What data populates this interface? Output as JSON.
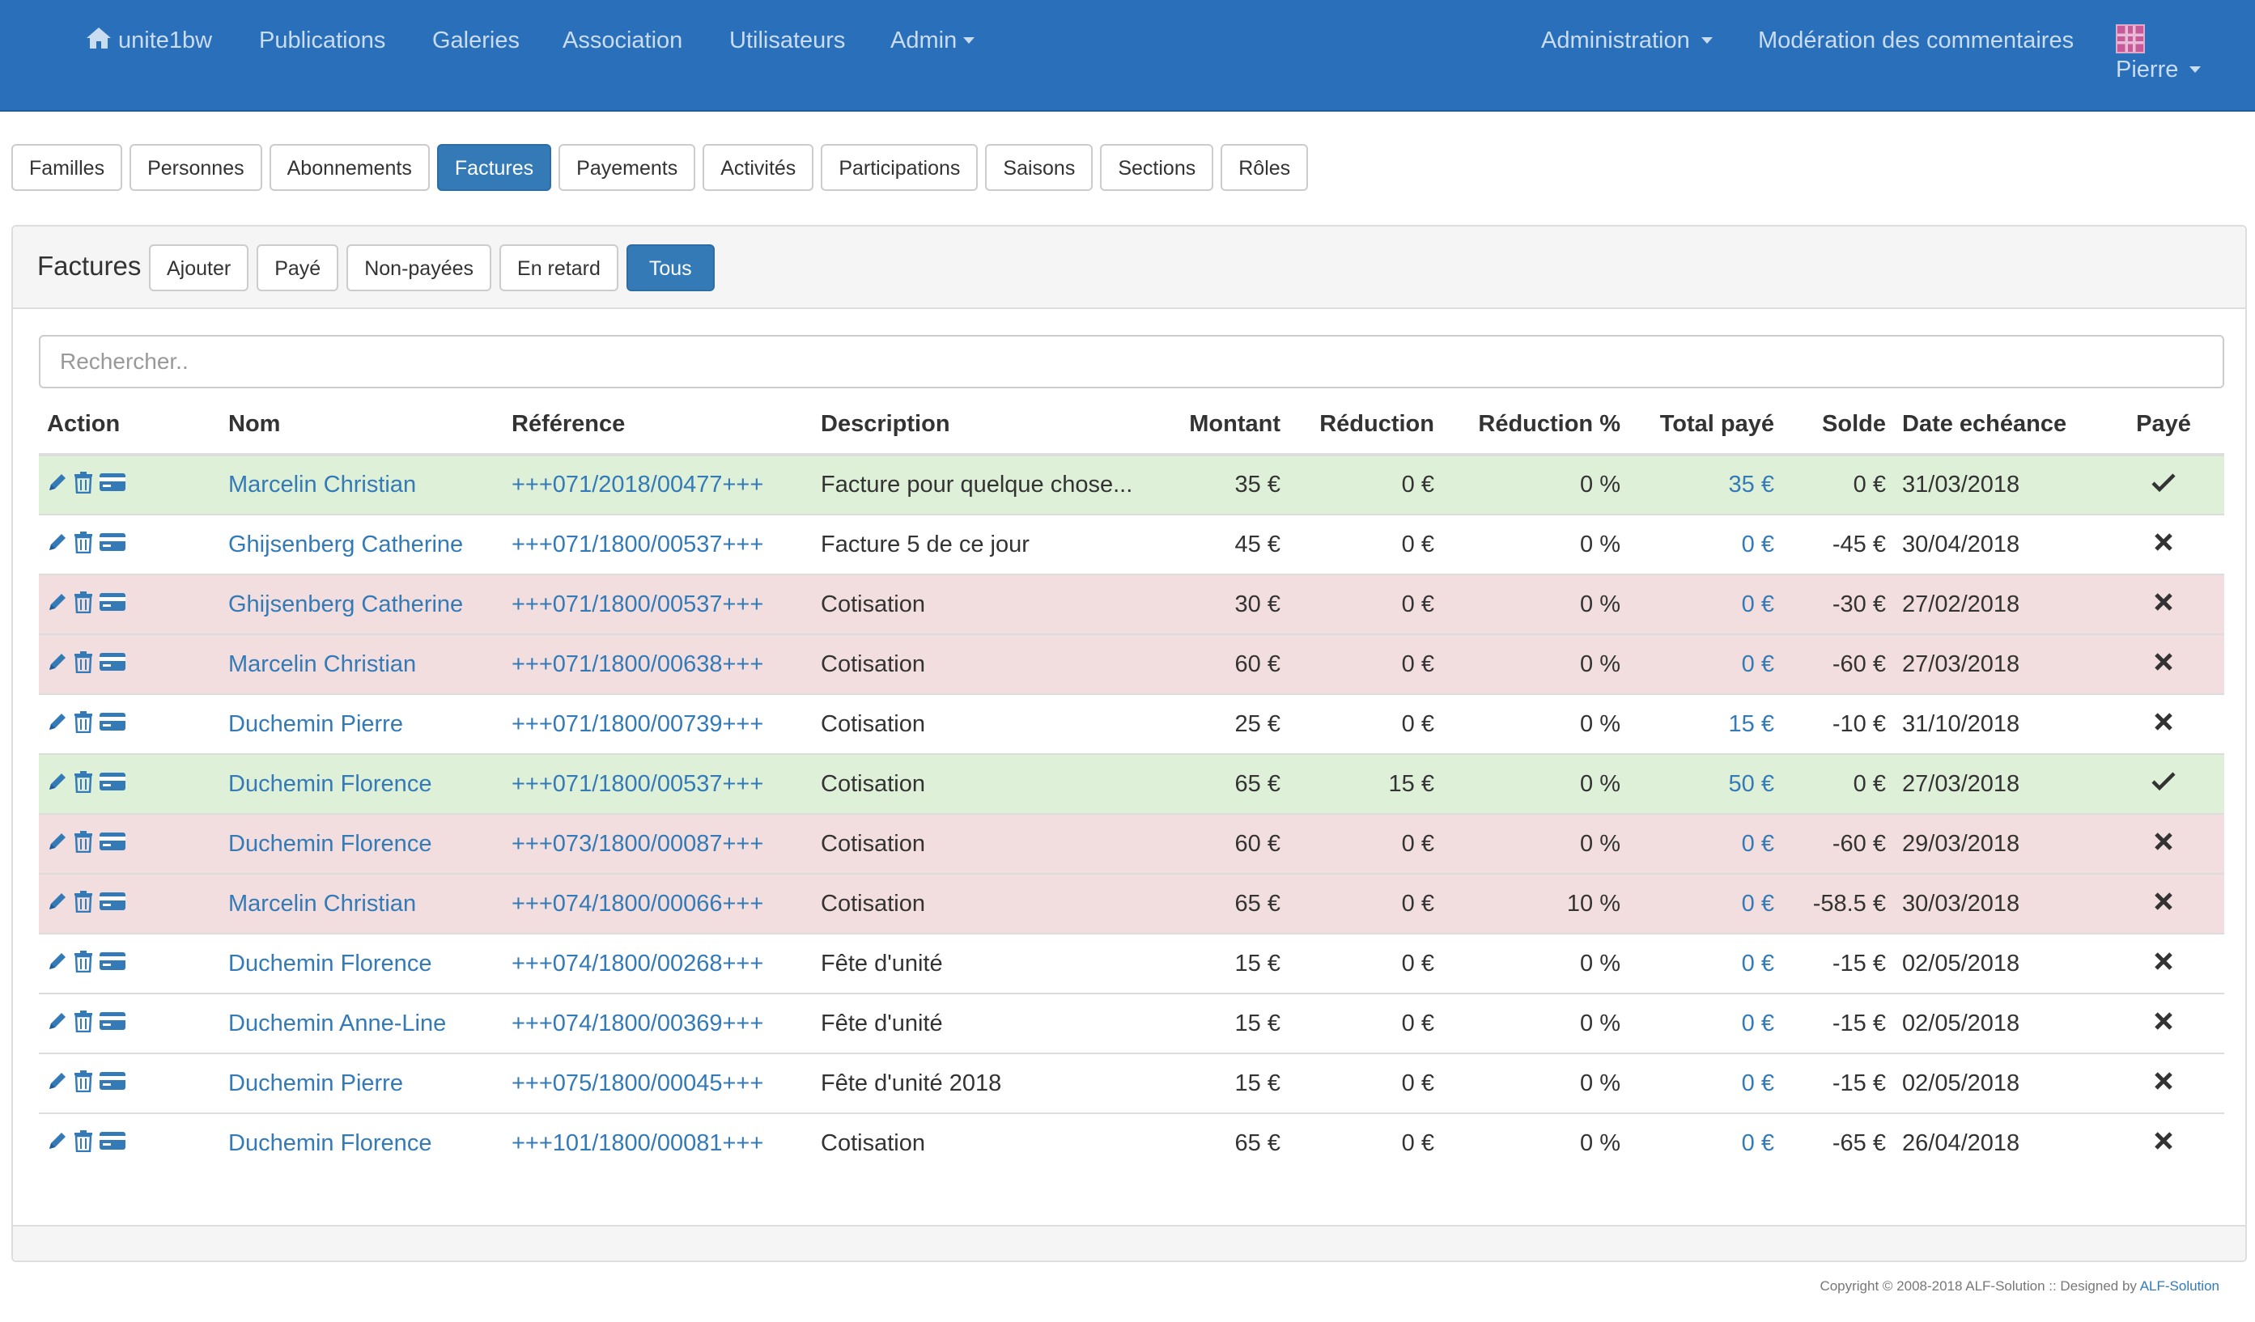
{
  "navbar": {
    "brand": "unite1bw",
    "items": [
      "Publications",
      "Galeries",
      "Association",
      "Utilisateurs"
    ],
    "admin_dropdown": "Admin",
    "administration": "Administration",
    "moderation": "Modération des commentaires",
    "user": "Pierre",
    "color": "#2a6fba"
  },
  "tabs": [
    {
      "label": "Familles",
      "active": false
    },
    {
      "label": "Personnes",
      "active": false
    },
    {
      "label": "Abonnements",
      "active": false
    },
    {
      "label": "Factures",
      "active": true
    },
    {
      "label": "Payements",
      "active": false
    },
    {
      "label": "Activités",
      "active": false
    },
    {
      "label": "Participations",
      "active": false
    },
    {
      "label": "Saisons",
      "active": false
    },
    {
      "label": "Sections",
      "active": false
    },
    {
      "label": "Rôles",
      "active": false
    }
  ],
  "panel": {
    "title": "Factures",
    "add_label": "Ajouter",
    "filters": [
      {
        "label": "Payé",
        "active": false
      },
      {
        "label": "Non-payées",
        "active": false
      },
      {
        "label": "En retard",
        "active": false
      },
      {
        "label": "Tous",
        "active": true
      }
    ]
  },
  "search": {
    "placeholder": "Rechercher..",
    "value": ""
  },
  "table": {
    "headers": {
      "action": "Action",
      "nom": "Nom",
      "reference": "Référence",
      "description": "Description",
      "montant": "Montant",
      "reduction": "Réduction",
      "reduction_pct": "Réduction %",
      "total_paye": "Total payé",
      "solde": "Solde",
      "date": "Date echéance",
      "paye": "Payé"
    },
    "rows": [
      {
        "status": "success",
        "nom": "Marcelin Christian",
        "reference": "+++071/2018/00477+++",
        "description": "Facture pour quelque chose...",
        "montant": "35 €",
        "reduction": "0 €",
        "reduction_pct": "0 %",
        "total_paye": "35 €",
        "solde": "0 €",
        "date": "31/03/2018",
        "paye": true
      },
      {
        "status": "",
        "nom": "Ghijsenberg Catherine",
        "reference": "+++071/1800/00537+++",
        "description": "Facture 5 de ce jour",
        "montant": "45 €",
        "reduction": "0 €",
        "reduction_pct": "0 %",
        "total_paye": "0 €",
        "solde": "-45 €",
        "date": "30/04/2018",
        "paye": false
      },
      {
        "status": "danger",
        "nom": "Ghijsenberg Catherine",
        "reference": "+++071/1800/00537+++",
        "description": "Cotisation",
        "montant": "30 €",
        "reduction": "0 €",
        "reduction_pct": "0 %",
        "total_paye": "0 €",
        "solde": "-30 €",
        "date": "27/02/2018",
        "paye": false
      },
      {
        "status": "danger",
        "nom": "Marcelin Christian",
        "reference": "+++071/1800/00638+++",
        "description": "Cotisation",
        "montant": "60 €",
        "reduction": "0 €",
        "reduction_pct": "0 %",
        "total_paye": "0 €",
        "solde": "-60 €",
        "date": "27/03/2018",
        "paye": false
      },
      {
        "status": "",
        "nom": "Duchemin Pierre",
        "reference": "+++071/1800/00739+++",
        "description": "Cotisation",
        "montant": "25 €",
        "reduction": "0 €",
        "reduction_pct": "0 %",
        "total_paye": "15 €",
        "solde": "-10 €",
        "date": "31/10/2018",
        "paye": false
      },
      {
        "status": "success",
        "nom": "Duchemin Florence",
        "reference": "+++071/1800/00537+++",
        "description": "Cotisation",
        "montant": "65 €",
        "reduction": "15 €",
        "reduction_pct": "0 %",
        "total_paye": "50 €",
        "solde": "0 €",
        "date": "27/03/2018",
        "paye": true
      },
      {
        "status": "danger",
        "nom": "Duchemin Florence",
        "reference": "+++073/1800/00087+++",
        "description": "Cotisation",
        "montant": "60 €",
        "reduction": "0 €",
        "reduction_pct": "0 %",
        "total_paye": "0 €",
        "solde": "-60 €",
        "date": "29/03/2018",
        "paye": false
      },
      {
        "status": "danger",
        "nom": "Marcelin Christian",
        "reference": "+++074/1800/00066+++",
        "description": "Cotisation",
        "montant": "65 €",
        "reduction": "0 €",
        "reduction_pct": "10 %",
        "total_paye": "0 €",
        "solde": "-58.5 €",
        "date": "30/03/2018",
        "paye": false
      },
      {
        "status": "",
        "nom": "Duchemin Florence",
        "reference": "+++074/1800/00268+++",
        "description": "Fête d'unité",
        "montant": "15 €",
        "reduction": "0 €",
        "reduction_pct": "0 %",
        "total_paye": "0 €",
        "solde": "-15 €",
        "date": "02/05/2018",
        "paye": false
      },
      {
        "status": "",
        "nom": "Duchemin Anne-Line",
        "reference": "+++074/1800/00369+++",
        "description": "Fête d'unité",
        "montant": "15 €",
        "reduction": "0 €",
        "reduction_pct": "0 %",
        "total_paye": "0 €",
        "solde": "-15 €",
        "date": "02/05/2018",
        "paye": false
      },
      {
        "status": "",
        "nom": "Duchemin Pierre",
        "reference": "+++075/1800/00045+++",
        "description": "Fête d'unité 2018",
        "montant": "15 €",
        "reduction": "0 €",
        "reduction_pct": "0 %",
        "total_paye": "0 €",
        "solde": "-15 €",
        "date": "02/05/2018",
        "paye": false
      },
      {
        "status": "",
        "nom": "Duchemin Florence",
        "reference": "+++101/1800/00081+++",
        "description": "Cotisation",
        "montant": "65 €",
        "reduction": "0 €",
        "reduction_pct": "0 %",
        "total_paye": "0 €",
        "solde": "-65 €",
        "date": "26/04/2018",
        "paye": false
      }
    ],
    "action_icons": [
      "pencil-icon",
      "trash-icon",
      "credit-card-icon"
    ],
    "paid_icon": "check-icon",
    "unpaid_icon": "cross-icon"
  },
  "footer": {
    "copyright": "Copyright © 2008-2018 ALF-Solution :: Designed by",
    "designer": "ALF-Solution"
  },
  "colors": {
    "link": "#337ab7",
    "primary": "#337ab7",
    "success_row": "#dff0d8",
    "danger_row": "#f2dede"
  }
}
